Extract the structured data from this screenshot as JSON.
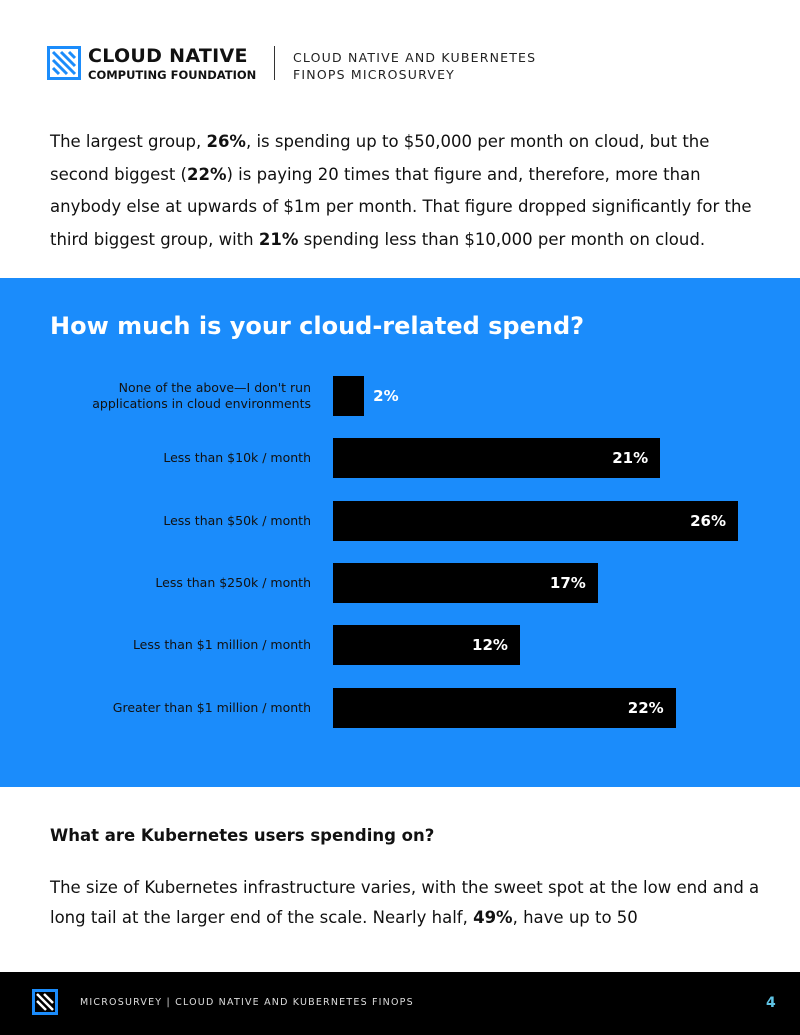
{
  "header": {
    "org": [
      "CLOUD NATIVE",
      "COMPUTING FOUNDATION"
    ],
    "report": [
      "CLOUD NATIVE AND KUBERNETES",
      "FINOPS MICROSURVEY"
    ]
  },
  "intro": [
    {
      "text": "The largest group, ",
      "bold": false
    },
    {
      "text": "26%",
      "bold": true
    },
    {
      "text": ", is spending up to $50,000 per month on cloud, but the second biggest (",
      "bold": false
    },
    {
      "text": "22%",
      "bold": true
    },
    {
      "text": ") is paying 20 times that figure and, therefore, more than anybody else at upwards of $1m per month. That figure dropped significantly for the third biggest group, with ",
      "bold": false
    },
    {
      "text": "21%",
      "bold": true
    },
    {
      "text": " spending less than $10,000 per month on cloud.",
      "bold": false
    }
  ],
  "chart_data": {
    "type": "bar",
    "orientation": "horizontal",
    "title": "How much is your cloud-related spend?",
    "categories": [
      "None of the above—I don't run applications in cloud environments",
      "Less than $10k / month",
      "Less than $50k / month",
      "Less than $250k / month",
      "Less than $1 million / month",
      "Greater than $1 million / month"
    ],
    "values": [
      2,
      21,
      26,
      17,
      12,
      22
    ],
    "value_labels": [
      "2%",
      "21%",
      "26%",
      "17%",
      "12%",
      "22%"
    ],
    "color": "#000000",
    "background": "#1b8cfb"
  },
  "section": {
    "heading": "What are Kubernetes users spending on?",
    "body": [
      {
        "text": "The size of Kubernetes infrastructure varies, with the sweet spot at the low end and a long tail at the larger end of the scale. Nearly half, ",
        "bold": false
      },
      {
        "text": "49%",
        "bold": true
      },
      {
        "text": ", have up to 50",
        "bold": false
      }
    ]
  },
  "footer": {
    "text": "MICROSURVEY | CLOUD NATIVE AND KUBERNETES FINOPS",
    "page": "4"
  }
}
